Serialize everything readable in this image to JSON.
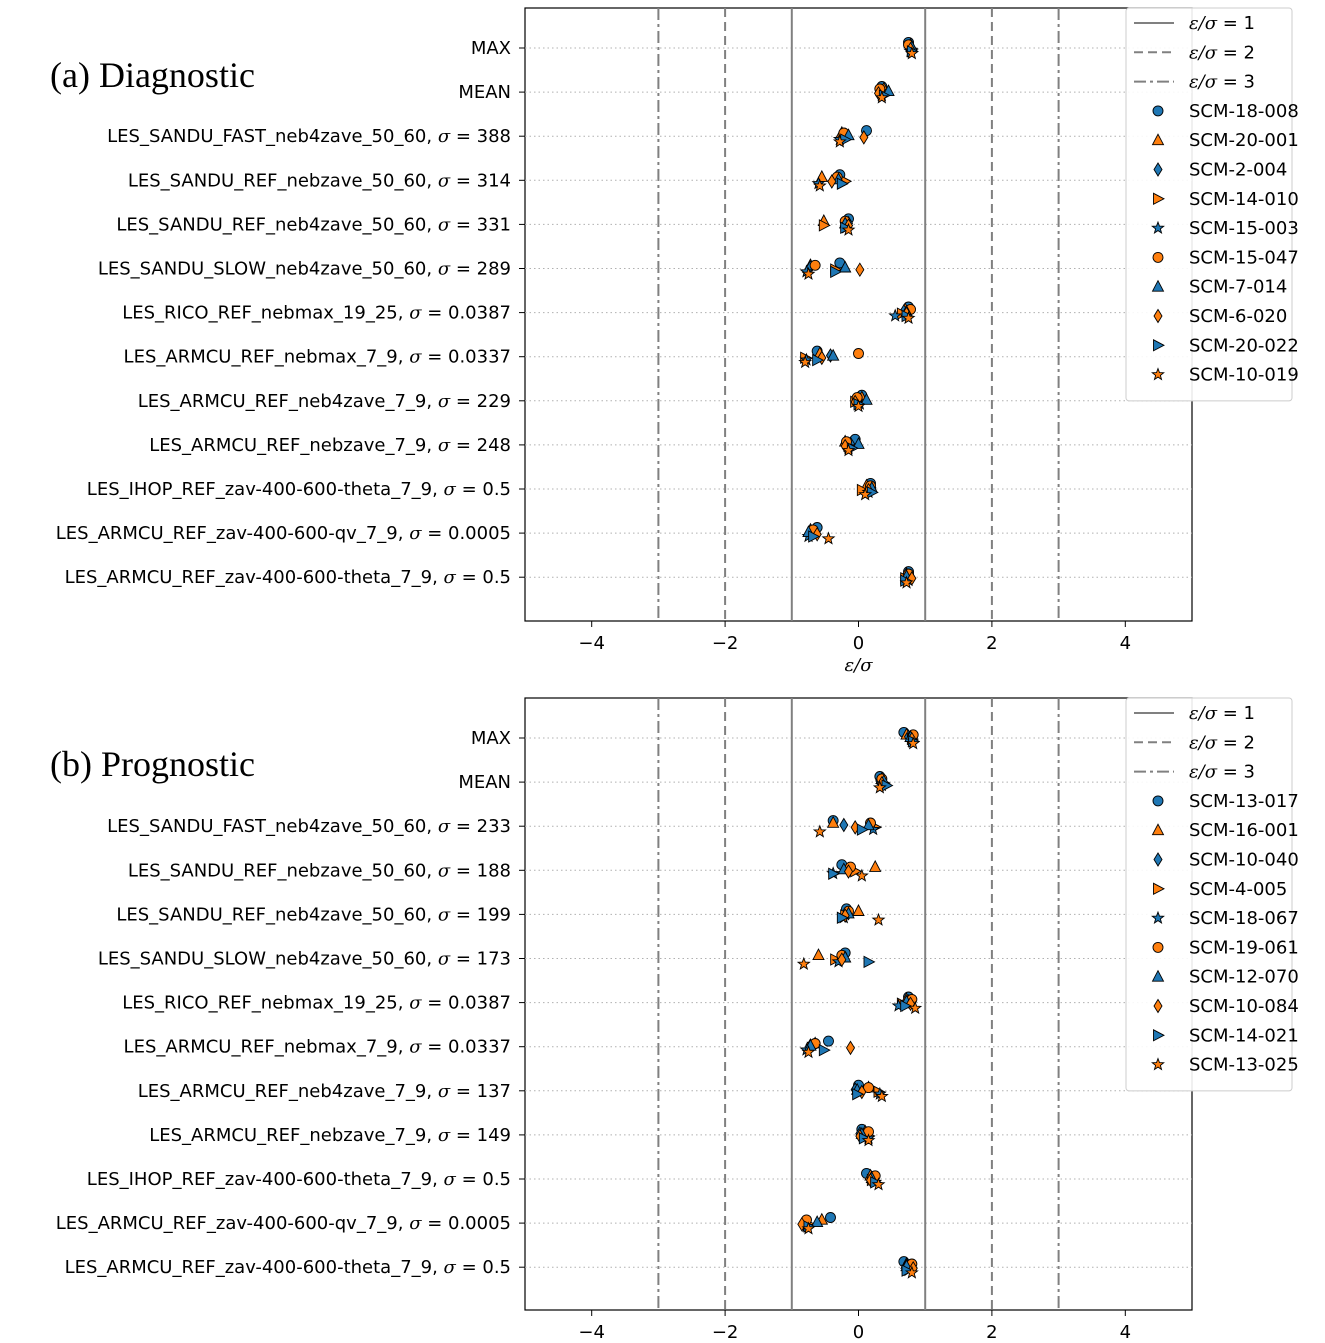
{
  "chart_data": [
    {
      "type": "scatter",
      "title": "(a) Diagnostic",
      "xlabel": "ε/σ",
      "xlim": [
        -5,
        5
      ],
      "xticks": [
        -4,
        -2,
        0,
        2,
        4
      ],
      "xtick_labels": [
        "−4",
        "−2",
        "0",
        "2",
        "4"
      ],
      "categories": [
        "MAX",
        "MEAN",
        "LES_SANDU_FAST_neb4zave_50_60, σ = 388",
        "LES_SANDU_REF_nebzave_50_60, σ = 314",
        "LES_SANDU_REF_neb4zave_50_60, σ = 331",
        "LES_SANDU_SLOW_neb4zave_50_60, σ = 289",
        "LES_RICO_REF_nebmax_19_25, σ = 0.0387",
        "LES_ARMCU_REF_nebmax_7_9, σ = 0.0337",
        "LES_ARMCU_REF_neb4zave_7_9, σ = 229",
        "LES_ARMCU_REF_nebzave_7_9, σ = 248",
        "LES_IHOP_REF_zav-400-600-theta_7_9, σ = 0.5",
        "LES_ARMCU_REF_zav-400-600-qv_7_9, σ = 0.0005",
        "LES_ARMCU_REF_zav-400-600-theta_7_9, σ = 0.5"
      ],
      "reference_lines": [
        {
          "label": "ε/σ = 1",
          "style": "solid",
          "x": [
            -1,
            1
          ]
        },
        {
          "label": "ε/σ = 2",
          "style": "dashed",
          "x": [
            -2,
            2
          ]
        },
        {
          "label": "ε/σ = 3",
          "style": "dashdot",
          "x": [
            -3,
            3
          ]
        }
      ],
      "grid": "horizontal dotted",
      "legend": "top-right",
      "series": [
        {
          "name": "SCM-18-008",
          "marker": "circle",
          "color": "#1f77b4",
          "values": [
            0.75,
            0.35,
            0.12,
            -0.28,
            -0.15,
            -0.28,
            0.75,
            -0.62,
            0.05,
            -0.05,
            0.18,
            -0.62,
            0.75
          ]
        },
        {
          "name": "SCM-20-001",
          "marker": "triangle-up",
          "color": "#ff7f0e",
          "values": [
            0.78,
            0.38,
            -0.25,
            -0.55,
            -0.52,
            -0.72,
            0.7,
            -0.58,
            0.05,
            -0.2,
            0.12,
            -0.72,
            0.72
          ]
        },
        {
          "name": "SCM-2-004",
          "marker": "diamond",
          "color": "#1f77b4",
          "values": [
            0.75,
            0.35,
            -0.2,
            -0.3,
            -0.15,
            -0.72,
            0.68,
            -0.42,
            0.0,
            -0.12,
            0.2,
            -0.7,
            0.75
          ]
        },
        {
          "name": "SCM-14-010",
          "marker": "triangle-right",
          "color": "#ff7f0e",
          "values": [
            0.8,
            0.42,
            -0.18,
            -0.2,
            -0.52,
            -0.35,
            0.65,
            -0.8,
            -0.05,
            -0.15,
            0.05,
            -0.65,
            0.7
          ]
        },
        {
          "name": "SCM-15-003",
          "marker": "star",
          "color": "#1f77b4",
          "values": [
            0.78,
            0.35,
            -0.28,
            -0.6,
            -0.18,
            -0.78,
            0.55,
            -0.78,
            0.02,
            -0.15,
            0.15,
            -0.75,
            0.75
          ]
        },
        {
          "name": "SCM-15-047",
          "marker": "circle",
          "color": "#ff7f0e",
          "values": [
            0.75,
            0.32,
            -0.22,
            -0.32,
            -0.2,
            -0.65,
            0.78,
            0.0,
            -0.02,
            -0.18,
            0.18,
            -0.68,
            0.75
          ]
        },
        {
          "name": "SCM-7-014",
          "marker": "triangle-up",
          "color": "#1f77b4",
          "values": [
            0.8,
            0.45,
            -0.15,
            -0.3,
            -0.2,
            -0.2,
            0.72,
            -0.38,
            0.12,
            0.0,
            0.2,
            -0.75,
            0.72
          ]
        },
        {
          "name": "SCM-6-020",
          "marker": "diamond",
          "color": "#ff7f0e",
          "values": [
            0.78,
            0.3,
            0.08,
            -0.4,
            -0.15,
            0.02,
            0.72,
            -0.55,
            -0.05,
            -0.2,
            0.15,
            -0.62,
            0.8
          ]
        },
        {
          "name": "SCM-20-022",
          "marker": "triangle-right",
          "color": "#1f77b4",
          "values": [
            0.8,
            0.38,
            -0.2,
            -0.25,
            -0.2,
            -0.35,
            0.72,
            -0.62,
            0.0,
            -0.1,
            0.2,
            -0.68,
            0.7
          ]
        },
        {
          "name": "SCM-10-019",
          "marker": "star",
          "color": "#ff7f0e",
          "values": [
            0.8,
            0.35,
            -0.28,
            -0.58,
            -0.15,
            -0.75,
            0.75,
            -0.8,
            0.0,
            -0.15,
            0.1,
            -0.45,
            0.72
          ]
        }
      ]
    },
    {
      "type": "scatter",
      "title": "(b) Prognostic",
      "xlabel": "",
      "xlim": [
        -5,
        5
      ],
      "xticks": [
        -4,
        -2,
        0,
        2,
        4
      ],
      "xtick_labels": [
        "−4",
        "−2",
        "0",
        "2",
        "4"
      ],
      "categories": [
        "MAX",
        "MEAN",
        "LES_SANDU_FAST_neb4zave_50_60, σ = 233",
        "LES_SANDU_REF_nebzave_50_60, σ = 188",
        "LES_SANDU_REF_neb4zave_50_60, σ = 199",
        "LES_SANDU_SLOW_neb4zave_50_60, σ = 173",
        "LES_RICO_REF_nebmax_19_25, σ = 0.0387",
        "LES_ARMCU_REF_nebmax_7_9, σ = 0.0337",
        "LES_ARMCU_REF_neb4zave_7_9, σ = 137",
        "LES_ARMCU_REF_nebzave_7_9, σ = 149",
        "LES_IHOP_REF_zav-400-600-theta_7_9, σ = 0.5",
        "LES_ARMCU_REF_zav-400-600-qv_7_9, σ = 0.0005",
        "LES_ARMCU_REF_zav-400-600-theta_7_9, σ = 0.5"
      ],
      "reference_lines": [
        {
          "label": "ε/σ = 1",
          "style": "solid",
          "x": [
            -1,
            1
          ]
        },
        {
          "label": "ε/σ = 2",
          "style": "dashed",
          "x": [
            -2,
            2
          ]
        },
        {
          "label": "ε/σ = 3",
          "style": "dashdot",
          "x": [
            -3,
            3
          ]
        }
      ],
      "grid": "horizontal dotted",
      "legend": "top-right",
      "series": [
        {
          "name": "SCM-13-017",
          "marker": "circle",
          "color": "#1f77b4",
          "values": [
            0.68,
            0.32,
            -0.38,
            -0.25,
            -0.18,
            -0.2,
            0.75,
            -0.45,
            0.0,
            0.05,
            0.12,
            -0.42,
            0.68
          ]
        },
        {
          "name": "SCM-16-001",
          "marker": "triangle-up",
          "color": "#ff7f0e",
          "values": [
            0.72,
            0.35,
            -0.38,
            0.25,
            0.0,
            -0.6,
            0.72,
            -0.65,
            0.15,
            0.1,
            0.18,
            -0.55,
            0.72
          ]
        },
        {
          "name": "SCM-10-040",
          "marker": "diamond",
          "color": "#1f77b4",
          "values": [
            0.75,
            0.32,
            -0.22,
            -0.15,
            -0.15,
            -0.25,
            0.75,
            -0.72,
            -0.05,
            0.02,
            0.2,
            -0.78,
            0.72
          ]
        },
        {
          "name": "SCM-4-005",
          "marker": "triangle-right",
          "color": "#ff7f0e",
          "values": [
            0.8,
            0.38,
            0.25,
            -0.05,
            -0.2,
            -0.35,
            0.65,
            -0.7,
            0.3,
            0.15,
            0.2,
            -0.75,
            0.75
          ]
        },
        {
          "name": "SCM-18-067",
          "marker": "star",
          "color": "#1f77b4",
          "values": [
            0.8,
            0.35,
            0.22,
            -0.38,
            -0.22,
            -0.3,
            0.6,
            -0.78,
            0.32,
            0.15,
            0.25,
            -0.78,
            0.75
          ]
        },
        {
          "name": "SCM-19-061",
          "marker": "circle",
          "color": "#ff7f0e",
          "values": [
            0.82,
            0.35,
            0.18,
            -0.12,
            -0.15,
            -0.25,
            0.8,
            -0.65,
            0.15,
            0.15,
            0.25,
            -0.78,
            0.8
          ]
        },
        {
          "name": "SCM-12-070",
          "marker": "triangle-up",
          "color": "#1f77b4",
          "values": [
            0.78,
            0.38,
            0.15,
            -0.22,
            -0.15,
            -0.2,
            0.72,
            -0.72,
            -0.02,
            0.05,
            0.2,
            -0.62,
            0.72
          ]
        },
        {
          "name": "SCM-10-084",
          "marker": "diamond",
          "color": "#ff7f0e",
          "values": [
            0.8,
            0.35,
            -0.05,
            -0.15,
            -0.2,
            -0.25,
            0.78,
            -0.12,
            0.05,
            0.02,
            0.18,
            -0.85,
            0.82
          ]
        },
        {
          "name": "SCM-14-021",
          "marker": "triangle-right",
          "color": "#1f77b4",
          "values": [
            0.82,
            0.42,
            0.05,
            -0.38,
            -0.25,
            0.15,
            0.7,
            -0.52,
            -0.02,
            0.08,
            0.25,
            -0.75,
            0.72
          ]
        },
        {
          "name": "SCM-13-025",
          "marker": "star",
          "color": "#ff7f0e",
          "values": [
            0.82,
            0.32,
            -0.58,
            0.05,
            0.3,
            -0.82,
            0.85,
            -0.75,
            0.35,
            0.15,
            0.3,
            -0.75,
            0.8
          ]
        }
      ]
    }
  ]
}
